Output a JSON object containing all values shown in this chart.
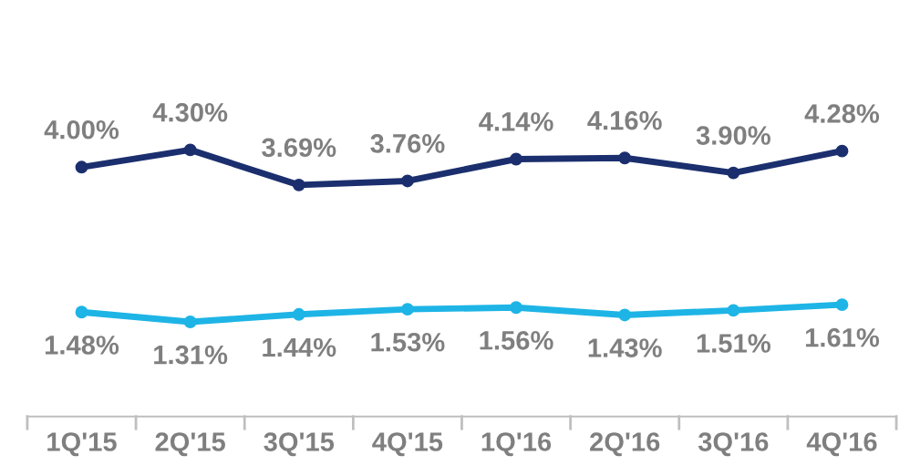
{
  "chart_data": {
    "type": "line",
    "categories": [
      "1Q'15",
      "2Q'15",
      "3Q'15",
      "4Q'15",
      "1Q'16",
      "2Q'16",
      "3Q'16",
      "4Q'16"
    ],
    "series": [
      {
        "color": "#1b2f6e",
        "values": [
          4.0,
          4.3,
          3.69,
          3.76,
          4.14,
          4.16,
          3.9,
          4.28
        ],
        "value_labels": [
          "4.00%",
          "4.30%",
          "3.69%",
          "3.76%",
          "4.14%",
          "4.16%",
          "3.90%",
          "4.28%"
        ]
      },
      {
        "color": "#1eb4e6",
        "values": [
          1.48,
          1.31,
          1.44,
          1.53,
          1.56,
          1.43,
          1.51,
          1.61
        ],
        "value_labels": [
          "1.48%",
          "1.31%",
          "1.44%",
          "1.53%",
          "1.56%",
          "1.43%",
          "1.51%",
          "1.61%"
        ]
      }
    ],
    "marker": "circle",
    "line_style": "solid",
    "grid": false,
    "legend": false
  }
}
